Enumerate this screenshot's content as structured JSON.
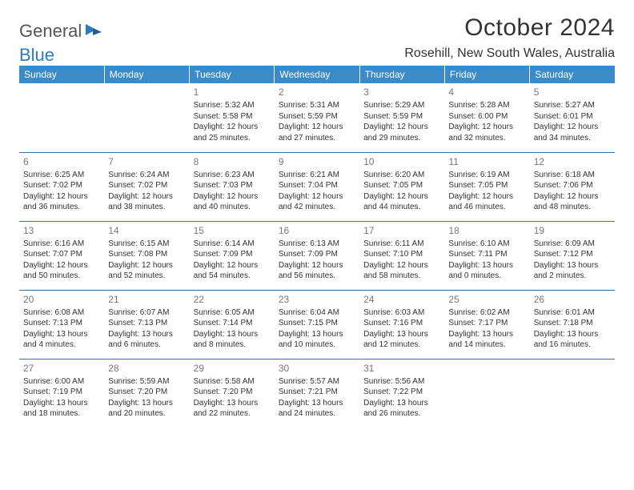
{
  "logo": {
    "textGeneral": "General",
    "textBlue": "Blue",
    "iconColor": "#2b7bbf",
    "grayColor": "#555555"
  },
  "title": "October 2024",
  "location": "Rosehill, New South Wales, Australia",
  "colors": {
    "headerBg": "#3b8bc9",
    "headerFg": "#ffffff",
    "rowBorder": "#3b6fa0",
    "dayNumColor": "#777777",
    "textColor": "#333333",
    "background": "#ffffff"
  },
  "typography": {
    "titleFontSize": 30,
    "locationFontSize": 16,
    "logoFontSize": 22,
    "dayHeaderFontSize": 12,
    "dayNumFontSize": 12,
    "cellFontSize": 10
  },
  "dayHeaders": [
    "Sunday",
    "Monday",
    "Tuesday",
    "Wednesday",
    "Thursday",
    "Friday",
    "Saturday"
  ],
  "weeks": [
    [
      null,
      null,
      {
        "n": "1",
        "sr": "Sunrise: 5:32 AM",
        "ss": "Sunset: 5:58 PM",
        "d1": "Daylight: 12 hours",
        "d2": "and 25 minutes."
      },
      {
        "n": "2",
        "sr": "Sunrise: 5:31 AM",
        "ss": "Sunset: 5:59 PM",
        "d1": "Daylight: 12 hours",
        "d2": "and 27 minutes."
      },
      {
        "n": "3",
        "sr": "Sunrise: 5:29 AM",
        "ss": "Sunset: 5:59 PM",
        "d1": "Daylight: 12 hours",
        "d2": "and 29 minutes."
      },
      {
        "n": "4",
        "sr": "Sunrise: 5:28 AM",
        "ss": "Sunset: 6:00 PM",
        "d1": "Daylight: 12 hours",
        "d2": "and 32 minutes."
      },
      {
        "n": "5",
        "sr": "Sunrise: 5:27 AM",
        "ss": "Sunset: 6:01 PM",
        "d1": "Daylight: 12 hours",
        "d2": "and 34 minutes."
      }
    ],
    [
      {
        "n": "6",
        "sr": "Sunrise: 6:25 AM",
        "ss": "Sunset: 7:02 PM",
        "d1": "Daylight: 12 hours",
        "d2": "and 36 minutes."
      },
      {
        "n": "7",
        "sr": "Sunrise: 6:24 AM",
        "ss": "Sunset: 7:02 PM",
        "d1": "Daylight: 12 hours",
        "d2": "and 38 minutes."
      },
      {
        "n": "8",
        "sr": "Sunrise: 6:23 AM",
        "ss": "Sunset: 7:03 PM",
        "d1": "Daylight: 12 hours",
        "d2": "and 40 minutes."
      },
      {
        "n": "9",
        "sr": "Sunrise: 6:21 AM",
        "ss": "Sunset: 7:04 PM",
        "d1": "Daylight: 12 hours",
        "d2": "and 42 minutes."
      },
      {
        "n": "10",
        "sr": "Sunrise: 6:20 AM",
        "ss": "Sunset: 7:05 PM",
        "d1": "Daylight: 12 hours",
        "d2": "and 44 minutes."
      },
      {
        "n": "11",
        "sr": "Sunrise: 6:19 AM",
        "ss": "Sunset: 7:05 PM",
        "d1": "Daylight: 12 hours",
        "d2": "and 46 minutes."
      },
      {
        "n": "12",
        "sr": "Sunrise: 6:18 AM",
        "ss": "Sunset: 7:06 PM",
        "d1": "Daylight: 12 hours",
        "d2": "and 48 minutes."
      }
    ],
    [
      {
        "n": "13",
        "sr": "Sunrise: 6:16 AM",
        "ss": "Sunset: 7:07 PM",
        "d1": "Daylight: 12 hours",
        "d2": "and 50 minutes."
      },
      {
        "n": "14",
        "sr": "Sunrise: 6:15 AM",
        "ss": "Sunset: 7:08 PM",
        "d1": "Daylight: 12 hours",
        "d2": "and 52 minutes."
      },
      {
        "n": "15",
        "sr": "Sunrise: 6:14 AM",
        "ss": "Sunset: 7:09 PM",
        "d1": "Daylight: 12 hours",
        "d2": "and 54 minutes."
      },
      {
        "n": "16",
        "sr": "Sunrise: 6:13 AM",
        "ss": "Sunset: 7:09 PM",
        "d1": "Daylight: 12 hours",
        "d2": "and 56 minutes."
      },
      {
        "n": "17",
        "sr": "Sunrise: 6:11 AM",
        "ss": "Sunset: 7:10 PM",
        "d1": "Daylight: 12 hours",
        "d2": "and 58 minutes."
      },
      {
        "n": "18",
        "sr": "Sunrise: 6:10 AM",
        "ss": "Sunset: 7:11 PM",
        "d1": "Daylight: 13 hours",
        "d2": "and 0 minutes."
      },
      {
        "n": "19",
        "sr": "Sunrise: 6:09 AM",
        "ss": "Sunset: 7:12 PM",
        "d1": "Daylight: 13 hours",
        "d2": "and 2 minutes."
      }
    ],
    [
      {
        "n": "20",
        "sr": "Sunrise: 6:08 AM",
        "ss": "Sunset: 7:13 PM",
        "d1": "Daylight: 13 hours",
        "d2": "and 4 minutes."
      },
      {
        "n": "21",
        "sr": "Sunrise: 6:07 AM",
        "ss": "Sunset: 7:13 PM",
        "d1": "Daylight: 13 hours",
        "d2": "and 6 minutes."
      },
      {
        "n": "22",
        "sr": "Sunrise: 6:05 AM",
        "ss": "Sunset: 7:14 PM",
        "d1": "Daylight: 13 hours",
        "d2": "and 8 minutes."
      },
      {
        "n": "23",
        "sr": "Sunrise: 6:04 AM",
        "ss": "Sunset: 7:15 PM",
        "d1": "Daylight: 13 hours",
        "d2": "and 10 minutes."
      },
      {
        "n": "24",
        "sr": "Sunrise: 6:03 AM",
        "ss": "Sunset: 7:16 PM",
        "d1": "Daylight: 13 hours",
        "d2": "and 12 minutes."
      },
      {
        "n": "25",
        "sr": "Sunrise: 6:02 AM",
        "ss": "Sunset: 7:17 PM",
        "d1": "Daylight: 13 hours",
        "d2": "and 14 minutes."
      },
      {
        "n": "26",
        "sr": "Sunrise: 6:01 AM",
        "ss": "Sunset: 7:18 PM",
        "d1": "Daylight: 13 hours",
        "d2": "and 16 minutes."
      }
    ],
    [
      {
        "n": "27",
        "sr": "Sunrise: 6:00 AM",
        "ss": "Sunset: 7:19 PM",
        "d1": "Daylight: 13 hours",
        "d2": "and 18 minutes."
      },
      {
        "n": "28",
        "sr": "Sunrise: 5:59 AM",
        "ss": "Sunset: 7:20 PM",
        "d1": "Daylight: 13 hours",
        "d2": "and 20 minutes."
      },
      {
        "n": "29",
        "sr": "Sunrise: 5:58 AM",
        "ss": "Sunset: 7:20 PM",
        "d1": "Daylight: 13 hours",
        "d2": "and 22 minutes."
      },
      {
        "n": "30",
        "sr": "Sunrise: 5:57 AM",
        "ss": "Sunset: 7:21 PM",
        "d1": "Daylight: 13 hours",
        "d2": "and 24 minutes."
      },
      {
        "n": "31",
        "sr": "Sunrise: 5:56 AM",
        "ss": "Sunset: 7:22 PM",
        "d1": "Daylight: 13 hours",
        "d2": "and 26 minutes."
      },
      null,
      null
    ]
  ]
}
